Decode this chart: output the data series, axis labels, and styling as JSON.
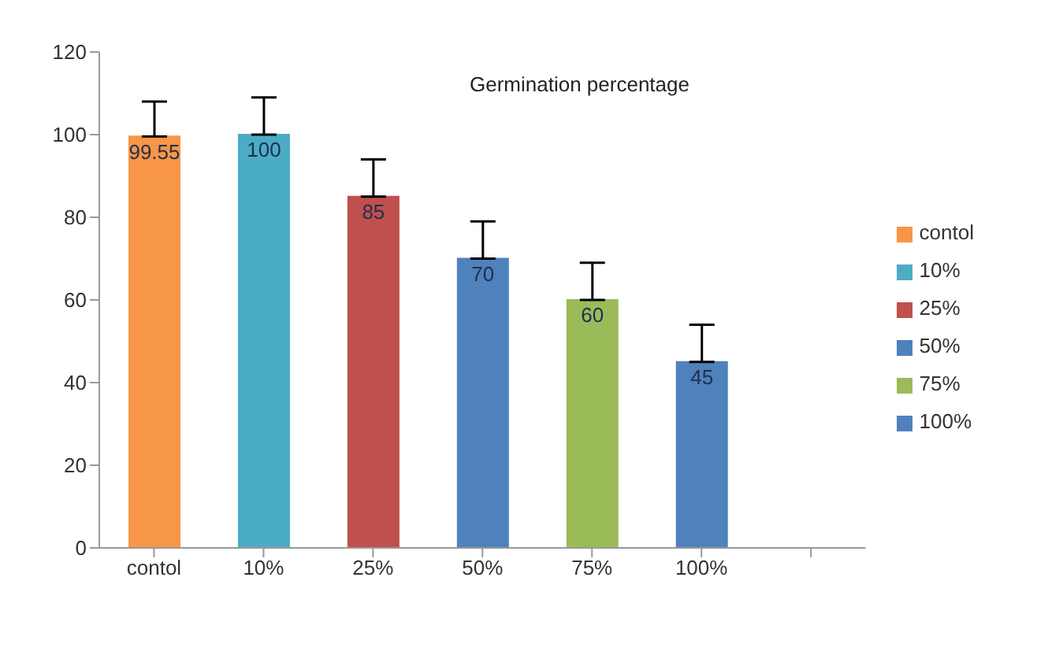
{
  "chart_data": {
    "type": "bar",
    "title": "Germination percentage",
    "categories": [
      "contol",
      "10%",
      "25%",
      "50%",
      "75%",
      "100%",
      null
    ],
    "series": [
      {
        "name": "contol",
        "color": "#f79646",
        "values": [
          99.55,
          null,
          null,
          null,
          null,
          null,
          null
        ],
        "errors": [
          [
            99.55,
            108
          ],
          null,
          null,
          null,
          null,
          null,
          null
        ]
      },
      {
        "name": "10%",
        "color": "#4bacc6",
        "values": [
          null,
          100,
          null,
          null,
          null,
          null,
          null
        ],
        "errors": [
          null,
          [
            100,
            109
          ],
          null,
          null,
          null,
          null,
          null
        ]
      },
      {
        "name": "25%",
        "color": "#c0504d",
        "values": [
          null,
          null,
          85,
          null,
          null,
          null,
          null
        ],
        "errors": [
          null,
          null,
          [
            85,
            94
          ],
          null,
          null,
          null,
          null
        ]
      },
      {
        "name": "50%",
        "color": "#4f81bd",
        "values": [
          null,
          null,
          null,
          70,
          null,
          null,
          null
        ],
        "errors": [
          null,
          null,
          null,
          [
            70,
            79
          ],
          null,
          null,
          null
        ]
      },
      {
        "name": "75%",
        "color": "#9bbb59",
        "values": [
          null,
          null,
          null,
          null,
          60,
          null,
          null
        ],
        "errors": [
          null,
          null,
          null,
          null,
          [
            60,
            69
          ],
          null,
          null
        ]
      },
      {
        "name": "100%",
        "color": "#4f81bd",
        "values": [
          null,
          null,
          null,
          null,
          null,
          45,
          null
        ],
        "errors": [
          null,
          null,
          null,
          null,
          null,
          [
            45,
            54
          ],
          null
        ]
      }
    ],
    "stacked": true,
    "ylim": [
      0,
      120
    ],
    "yticks": [
      0,
      20,
      40,
      60,
      80,
      100,
      120
    ],
    "data_labels": true,
    "legend": "right",
    "grid": false
  }
}
